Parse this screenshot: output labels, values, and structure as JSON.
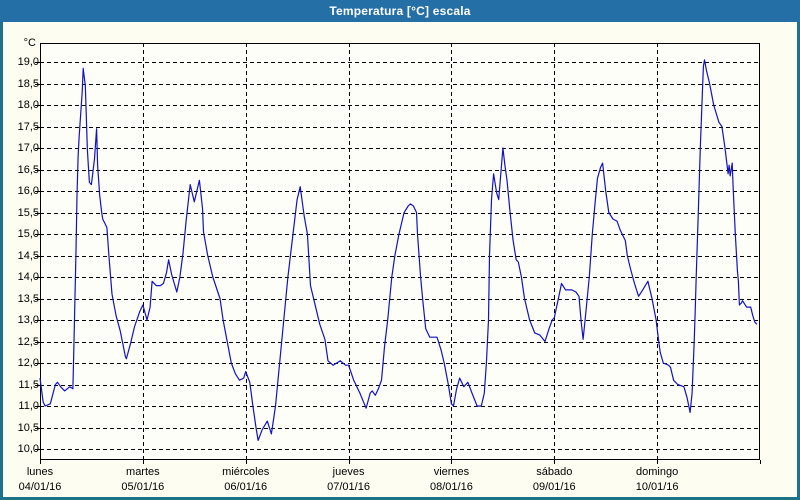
{
  "window": {
    "title": "Temperatura [°C] escala"
  },
  "colors": {
    "frame": "#1d7489",
    "titlebar": "#2470a6",
    "content_bg": "#fdfdf2",
    "plot_bg": "#fefef8",
    "grid": "#000000",
    "line": "#1212c4",
    "text": "#000000"
  },
  "chart_data": {
    "type": "line",
    "title": "Temperatura [°C] escala",
    "ylabel": "°C",
    "xlabel": "",
    "y_min": 10.0,
    "y_max": 19.0,
    "y_step": 0.5,
    "grid": "dashed",
    "legend_position": "none",
    "y_tick_labels": [
      "19,0",
      "18,5",
      "18,0",
      "17,5",
      "17,0",
      "16,5",
      "16,0",
      "15,5",
      "15,0",
      "14,5",
      "14,0",
      "13,5",
      "13,0",
      "12,5",
      "12,0",
      "11,5",
      "11,0",
      "10,5",
      "10,0"
    ],
    "x_days": [
      {
        "name": "lunes",
        "date": "04/01/16"
      },
      {
        "name": "martes",
        "date": "05/01/16"
      },
      {
        "name": "miércoles",
        "date": "06/01/16"
      },
      {
        "name": "jueves",
        "date": "07/01/16"
      },
      {
        "name": "viernes",
        "date": "08/01/16"
      },
      {
        "name": "sábado",
        "date": "09/01/16"
      },
      {
        "name": "domingo",
        "date": "10/01/16"
      }
    ],
    "x_unit": "days since Monday 2016-01-04 00:00",
    "series": [
      {
        "name": "Temperatura",
        "color": "#1212c4",
        "points": [
          [
            0,
            11.65
          ],
          [
            0.03,
            11.1
          ],
          [
            0.05,
            11.0
          ],
          [
            0.1,
            11.05
          ],
          [
            0.15,
            11.5
          ],
          [
            0.17,
            11.55
          ],
          [
            0.2,
            11.45
          ],
          [
            0.24,
            11.35
          ],
          [
            0.29,
            11.45
          ],
          [
            0.32,
            11.4
          ],
          [
            0.33,
            12.4
          ],
          [
            0.35,
            14.6
          ],
          [
            0.36,
            15.9
          ],
          [
            0.37,
            16.8
          ],
          [
            0.38,
            17.25
          ],
          [
            0.41,
            18.3
          ],
          [
            0.42,
            18.85
          ],
          [
            0.44,
            18.45
          ],
          [
            0.45,
            17.75
          ],
          [
            0.46,
            17.0
          ],
          [
            0.47,
            16.6
          ],
          [
            0.48,
            16.2
          ],
          [
            0.5,
            16.15
          ],
          [
            0.53,
            16.75
          ],
          [
            0.55,
            17.45
          ],
          [
            0.56,
            16.6
          ],
          [
            0.58,
            15.9
          ],
          [
            0.6,
            15.5
          ],
          [
            0.61,
            15.35
          ],
          [
            0.65,
            15.15
          ],
          [
            0.67,
            14.5
          ],
          [
            0.7,
            13.6
          ],
          [
            0.74,
            13.1
          ],
          [
            0.78,
            12.75
          ],
          [
            0.83,
            12.15
          ],
          [
            0.84,
            12.1
          ],
          [
            0.88,
            12.45
          ],
          [
            0.92,
            12.85
          ],
          [
            0.97,
            13.2
          ],
          [
            1.0,
            13.35
          ],
          [
            1.04,
            13.0
          ],
          [
            1.07,
            13.3
          ],
          [
            1.09,
            13.9
          ],
          [
            1.13,
            13.8
          ],
          [
            1.17,
            13.8
          ],
          [
            1.2,
            13.85
          ],
          [
            1.23,
            14.1
          ],
          [
            1.25,
            14.4
          ],
          [
            1.28,
            14.05
          ],
          [
            1.33,
            13.65
          ],
          [
            1.36,
            14.0
          ],
          [
            1.39,
            14.55
          ],
          [
            1.42,
            15.3
          ],
          [
            1.46,
            16.15
          ],
          [
            1.5,
            15.75
          ],
          [
            1.55,
            16.25
          ],
          [
            1.58,
            15.6
          ],
          [
            1.59,
            15.05
          ],
          [
            1.63,
            14.5
          ],
          [
            1.68,
            14.0
          ],
          [
            1.75,
            13.5
          ],
          [
            1.78,
            13.0
          ],
          [
            1.82,
            12.5
          ],
          [
            1.86,
            12.0
          ],
          [
            1.9,
            11.75
          ],
          [
            1.94,
            11.6
          ],
          [
            1.98,
            11.65
          ],
          [
            2.0,
            11.8
          ],
          [
            2.04,
            11.55
          ],
          [
            2.07,
            11.0
          ],
          [
            2.1,
            10.5
          ],
          [
            2.12,
            10.2
          ],
          [
            2.16,
            10.45
          ],
          [
            2.21,
            10.65
          ],
          [
            2.25,
            10.35
          ],
          [
            2.29,
            11.0
          ],
          [
            2.35,
            12.5
          ],
          [
            2.41,
            14.0
          ],
          [
            2.46,
            15.0
          ],
          [
            2.5,
            15.8
          ],
          [
            2.53,
            16.1
          ],
          [
            2.57,
            15.4
          ],
          [
            2.6,
            15.0
          ],
          [
            2.63,
            13.8
          ],
          [
            2.67,
            13.4
          ],
          [
            2.72,
            12.9
          ],
          [
            2.77,
            12.55
          ],
          [
            2.8,
            12.05
          ],
          [
            2.85,
            11.95
          ],
          [
            2.92,
            12.05
          ],
          [
            2.97,
            11.95
          ],
          [
            3.0,
            11.95
          ],
          [
            3.05,
            11.6
          ],
          [
            3.11,
            11.3
          ],
          [
            3.17,
            10.95
          ],
          [
            3.21,
            11.3
          ],
          [
            3.23,
            11.35
          ],
          [
            3.26,
            11.25
          ],
          [
            3.29,
            11.4
          ],
          [
            3.32,
            11.6
          ],
          [
            3.35,
            12.4
          ],
          [
            3.38,
            13.0
          ],
          [
            3.42,
            14.0
          ],
          [
            3.45,
            14.5
          ],
          [
            3.49,
            15.0
          ],
          [
            3.54,
            15.5
          ],
          [
            3.58,
            15.65
          ],
          [
            3.6,
            15.7
          ],
          [
            3.63,
            15.65
          ],
          [
            3.66,
            15.5
          ],
          [
            3.67,
            15.0
          ],
          [
            3.7,
            14.0
          ],
          [
            3.72,
            13.5
          ],
          [
            3.75,
            12.8
          ],
          [
            3.79,
            12.6
          ],
          [
            3.86,
            12.6
          ],
          [
            3.9,
            12.3
          ],
          [
            3.93,
            12.0
          ],
          [
            3.97,
            11.5
          ],
          [
            4.0,
            11.05
          ],
          [
            4.02,
            11.0
          ],
          [
            4.05,
            11.4
          ],
          [
            4.08,
            11.65
          ],
          [
            4.12,
            11.45
          ],
          [
            4.16,
            11.55
          ],
          [
            4.2,
            11.3
          ],
          [
            4.25,
            11.0
          ],
          [
            4.29,
            11.0
          ],
          [
            4.32,
            11.3
          ],
          [
            4.34,
            12.0
          ],
          [
            4.36,
            13.0
          ],
          [
            4.37,
            14.5
          ],
          [
            4.39,
            15.8
          ],
          [
            4.41,
            16.4
          ],
          [
            4.44,
            15.95
          ],
          [
            4.46,
            15.8
          ],
          [
            4.48,
            16.4
          ],
          [
            4.5,
            17.0
          ],
          [
            4.52,
            16.6
          ],
          [
            4.54,
            16.25
          ],
          [
            4.57,
            15.5
          ],
          [
            4.6,
            14.85
          ],
          [
            4.63,
            14.4
          ],
          [
            4.65,
            14.35
          ],
          [
            4.68,
            14.0
          ],
          [
            4.71,
            13.5
          ],
          [
            4.76,
            13.0
          ],
          [
            4.81,
            12.7
          ],
          [
            4.86,
            12.65
          ],
          [
            4.91,
            12.5
          ],
          [
            4.95,
            12.8
          ],
          [
            4.98,
            13.0
          ],
          [
            5.0,
            13.05
          ],
          [
            5.04,
            13.5
          ],
          [
            5.07,
            13.85
          ],
          [
            5.11,
            13.7
          ],
          [
            5.17,
            13.7
          ],
          [
            5.21,
            13.65
          ],
          [
            5.24,
            13.55
          ],
          [
            5.26,
            13.0
          ],
          [
            5.28,
            12.55
          ],
          [
            5.3,
            13.0
          ],
          [
            5.32,
            13.5
          ],
          [
            5.34,
            14.0
          ],
          [
            5.37,
            15.0
          ],
          [
            5.4,
            15.8
          ],
          [
            5.42,
            16.3
          ],
          [
            5.45,
            16.55
          ],
          [
            5.47,
            16.65
          ],
          [
            5.5,
            16.0
          ],
          [
            5.53,
            15.5
          ],
          [
            5.57,
            15.35
          ],
          [
            5.61,
            15.3
          ],
          [
            5.64,
            15.1
          ],
          [
            5.67,
            14.95
          ],
          [
            5.69,
            14.85
          ],
          [
            5.71,
            14.5
          ],
          [
            5.74,
            14.2
          ],
          [
            5.78,
            13.85
          ],
          [
            5.82,
            13.55
          ],
          [
            5.86,
            13.7
          ],
          [
            5.91,
            13.9
          ],
          [
            5.95,
            13.5
          ],
          [
            5.99,
            13.0
          ],
          [
            6.01,
            12.6
          ],
          [
            6.03,
            12.25
          ],
          [
            6.06,
            12.0
          ],
          [
            6.11,
            11.95
          ],
          [
            6.13,
            11.9
          ],
          [
            6.16,
            11.6
          ],
          [
            6.2,
            11.5
          ],
          [
            6.26,
            11.45
          ],
          [
            6.29,
            11.2
          ],
          [
            6.32,
            10.85
          ],
          [
            6.34,
            11.3
          ],
          [
            6.36,
            12.5
          ],
          [
            6.37,
            13.2
          ],
          [
            6.38,
            14.0
          ],
          [
            6.4,
            15.5
          ],
          [
            6.42,
            17.0
          ],
          [
            6.44,
            18.3
          ],
          [
            6.45,
            18.9
          ],
          [
            6.46,
            19.05
          ],
          [
            6.48,
            18.8
          ],
          [
            6.51,
            18.5
          ],
          [
            6.55,
            18.0
          ],
          [
            6.6,
            17.6
          ],
          [
            6.63,
            17.5
          ],
          [
            6.66,
            17.0
          ],
          [
            6.69,
            16.4
          ],
          [
            6.7,
            16.6
          ],
          [
            6.71,
            16.35
          ],
          [
            6.73,
            16.65
          ],
          [
            6.74,
            16.0
          ],
          [
            6.75,
            15.5
          ],
          [
            6.76,
            15.0
          ],
          [
            6.78,
            14.15
          ],
          [
            6.79,
            13.9
          ],
          [
            6.8,
            13.35
          ],
          [
            6.82,
            13.4
          ],
          [
            6.83,
            13.45
          ],
          [
            6.87,
            13.3
          ],
          [
            6.91,
            13.3
          ],
          [
            6.93,
            13.1
          ],
          [
            6.95,
            12.95
          ],
          [
            6.97,
            12.9
          ]
        ]
      }
    ]
  }
}
